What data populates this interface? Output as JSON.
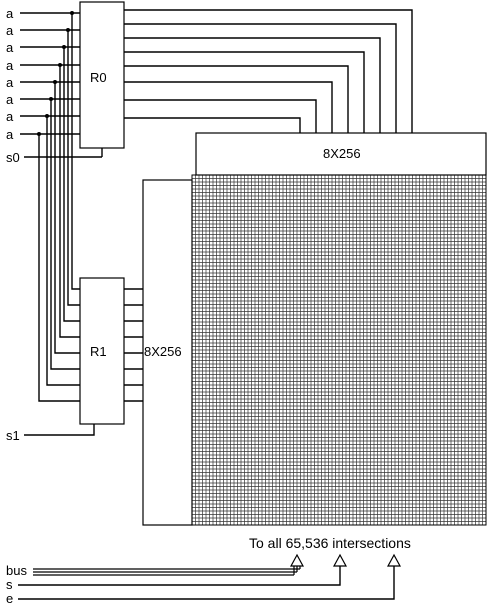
{
  "inputs": {
    "a_label": "a",
    "s0": "s0",
    "s1": "s1",
    "bus": "bus",
    "s": "s",
    "e": "e"
  },
  "registers": {
    "r0": "R0",
    "r1": "R1"
  },
  "decoders": {
    "top": "8X256",
    "left": "8X256"
  },
  "note": "To all 65,536 intersections"
}
